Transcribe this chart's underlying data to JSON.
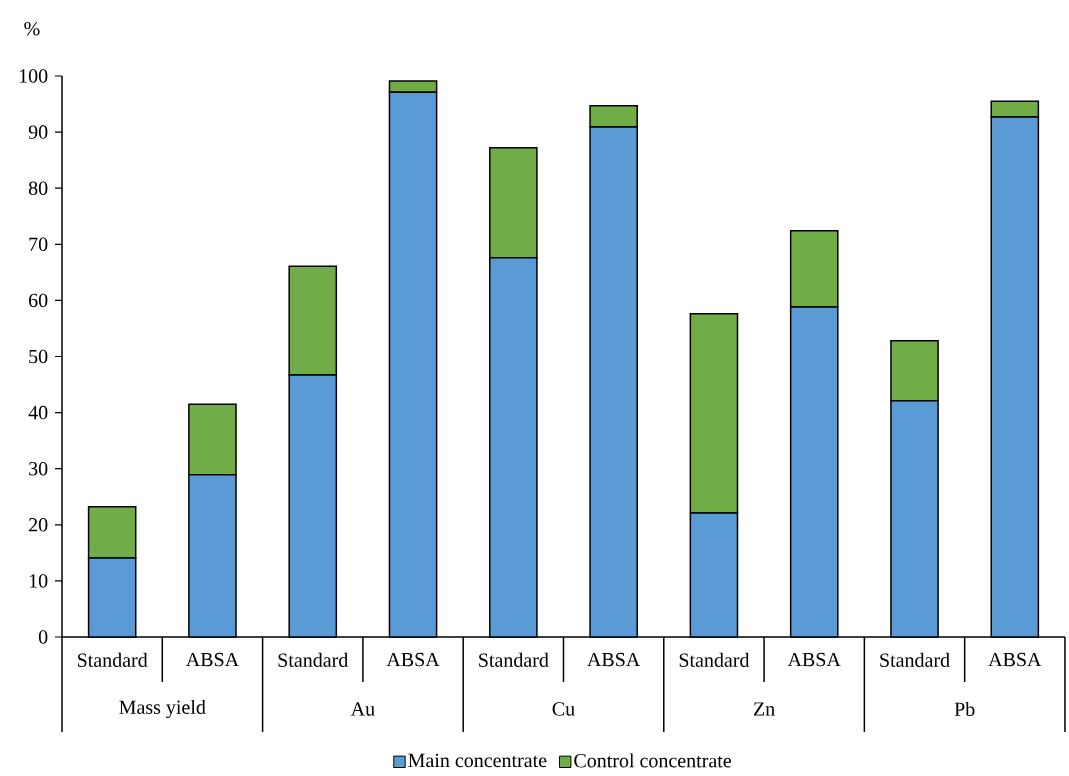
{
  "chart_data": {
    "type": "bar",
    "stacked": true,
    "ylabel": "%",
    "categories": [
      "Standard",
      "ABSA",
      "Standard",
      "ABSA",
      "Standard",
      "ABSA",
      "Standard",
      "ABSA",
      "Standard",
      "ABSA"
    ],
    "annotations": [
      "Mass yield",
      "Au",
      "Cu",
      "Zn",
      "Pb"
    ],
    "series": [
      {
        "name": "Main concentrate",
        "color": "#5b9bd5",
        "values": [
          14.1,
          28.9,
          46.7,
          97.1,
          67.6,
          90.9,
          22.1,
          58.8,
          42.1,
          92.7
        ]
      },
      {
        "name": "Control concentrate",
        "color": "#70ad47",
        "values": [
          9.1,
          12.6,
          19.4,
          2.0,
          19.6,
          3.8,
          35.5,
          13.6,
          10.7,
          2.8
        ]
      }
    ],
    "ylim": [
      0,
      100
    ],
    "yticks": [
      0,
      10,
      20,
      30,
      40,
      50,
      60,
      70,
      80,
      90,
      100
    ],
    "grid": false,
    "legend": "bottom"
  }
}
